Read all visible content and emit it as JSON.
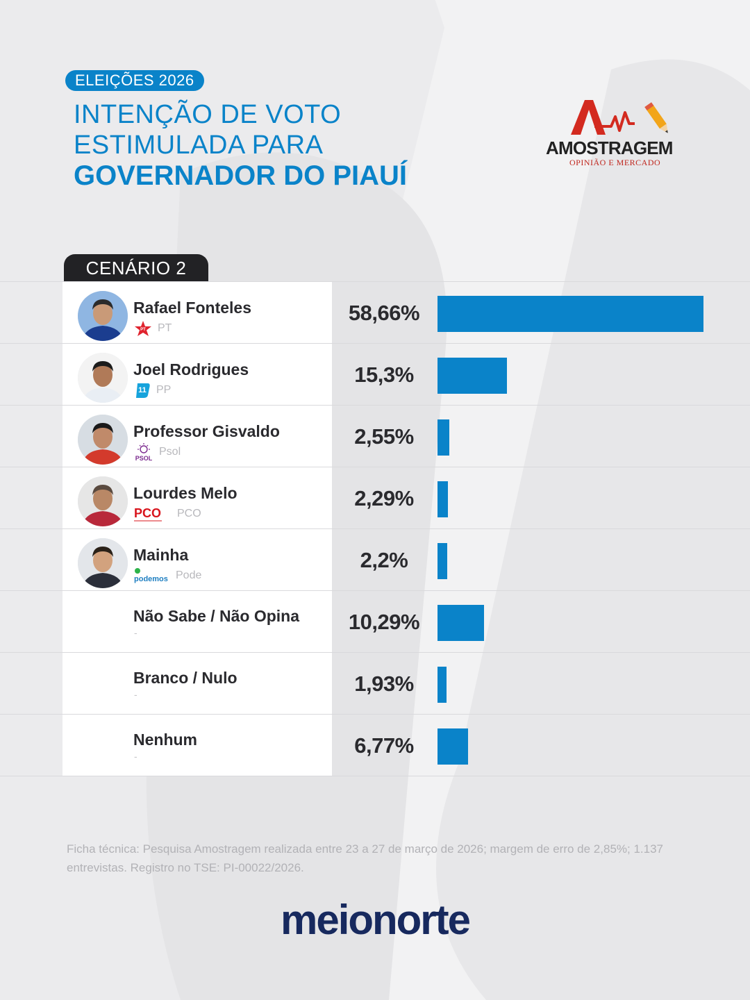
{
  "header": {
    "badge": "ELEIÇÕES 2026",
    "title_line1": "INTENÇÃO DE VOTO",
    "title_line2": "ESTIMULADA PARA",
    "title_line3": "GOVERNADOR DO PIAUÍ"
  },
  "pollster": {
    "name": "AMOSTRAGEM",
    "tagline": "OPINIÃO E MERCADO"
  },
  "scenario_label": "CENÁRIO 2",
  "chart_data": {
    "type": "bar",
    "orientation": "horizontal",
    "categories": [
      "Rafael Fonteles",
      "Joel Rodrigues",
      "Professor Gisvaldo",
      "Lourdes Melo",
      "Mainha",
      "Não Sabe / Não Opina",
      "Branco / Nulo",
      "Nenhum"
    ],
    "values": [
      58.66,
      15.3,
      2.55,
      2.29,
      2.2,
      10.29,
      1.93,
      6.77
    ],
    "value_labels": [
      "58,66%",
      "15,3%",
      "2,55%",
      "2,29%",
      "2,2%",
      "10,29%",
      "1,93%",
      "6,77%"
    ],
    "parties": [
      "PT",
      "PP",
      "Psol",
      "PCO",
      "Pode",
      "-",
      "-",
      "-"
    ],
    "unit": "%",
    "bar_color": "#0a83c9",
    "xlim": [
      0,
      58.66
    ],
    "grid": false
  },
  "party_logos": {
    "PT": "PT",
    "PP": "11",
    "Psol": "PSOL",
    "PCO": "PCO",
    "Pode": "podemos"
  },
  "icons": {
    "PT": "red-star-icon",
    "PP": "pp-11-logo-icon",
    "Psol": "psol-sun-logo-icon",
    "PCO": "pco-logo-icon",
    "Pode": "podemos-logo-icon"
  },
  "footnote": "Ficha técnica: Pesquisa Amostragem realizada entre 23 a 27 de março de 2026; margem de erro de 2,85%; 1.137 entrevistas. Registro no TSE: PI-00022/2026.",
  "brand": "meionorte"
}
